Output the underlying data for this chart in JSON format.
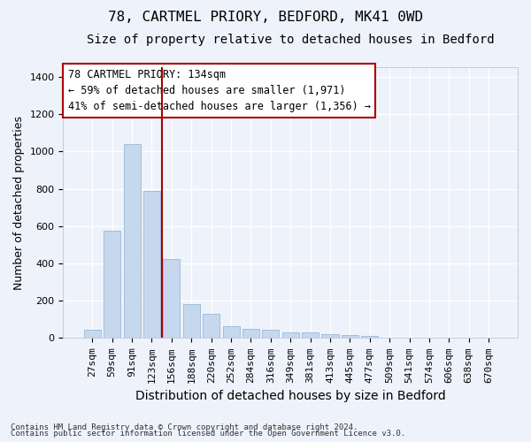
{
  "title1": "78, CARTMEL PRIORY, BEDFORD, MK41 0WD",
  "title2": "Size of property relative to detached houses in Bedford",
  "xlabel": "Distribution of detached houses by size in Bedford",
  "ylabel": "Number of detached properties",
  "bar_color": "#c5d8ed",
  "bar_edge_color": "#9ab8d4",
  "categories": [
    "27sqm",
    "59sqm",
    "91sqm",
    "123sqm",
    "156sqm",
    "188sqm",
    "220sqm",
    "252sqm",
    "284sqm",
    "316sqm",
    "349sqm",
    "381sqm",
    "413sqm",
    "445sqm",
    "477sqm",
    "509sqm",
    "541sqm",
    "574sqm",
    "606sqm",
    "638sqm",
    "670sqm"
  ],
  "values": [
    45,
    575,
    1040,
    790,
    425,
    180,
    130,
    65,
    50,
    45,
    30,
    30,
    20,
    15,
    10,
    0,
    0,
    0,
    0,
    0,
    0
  ],
  "ylim": [
    0,
    1450
  ],
  "yticks": [
    0,
    200,
    400,
    600,
    800,
    1000,
    1200,
    1400
  ],
  "vline_position": 3.5,
  "annotation_text": "78 CARTMEL PRIORY: 134sqm\n← 59% of detached houses are smaller (1,971)\n41% of semi-detached houses are larger (1,356) →",
  "vline_color": "#aa0000",
  "footnote1": "Contains HM Land Registry data © Crown copyright and database right 2024.",
  "footnote2": "Contains public sector information licensed under the Open Government Licence v3.0.",
  "background_color": "#eef2fb",
  "grid_color": "#ffffff",
  "title1_fontsize": 11.5,
  "title2_fontsize": 10,
  "ylabel_fontsize": 9,
  "xlabel_fontsize": 10,
  "tick_fontsize": 8,
  "annot_fontsize": 8.5,
  "footnote_fontsize": 6.5
}
